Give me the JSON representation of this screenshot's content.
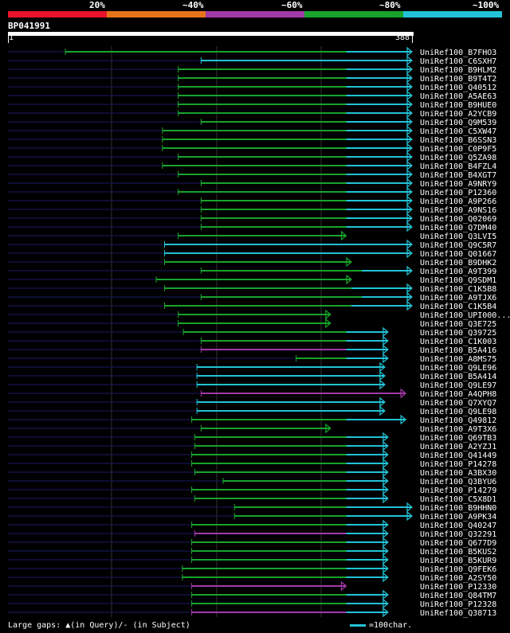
{
  "legend": {
    "labels": [
      "20%",
      "~40%",
      "~60%",
      "~80%",
      "~100%"
    ],
    "colors": [
      "#e8132a",
      "#e8741a",
      "#a23aa8",
      "#18a42c",
      "#22c3d6"
    ]
  },
  "query": {
    "id": "BP041991",
    "start": "1",
    "end": "388"
  },
  "footer": {
    "gaps": "Large gaps: ▲(in Query)/- (in Subject)",
    "scale": "=100char."
  },
  "hits": [
    {
      "name": "UniRef100_B7FHO3",
      "start": 56,
      "end": 388,
      "color": "#18a42c",
      "cyan_from": 325
    },
    {
      "name": "UniRef100_C6SXH7",
      "start": 186,
      "end": 388,
      "color": "#22c3d6",
      "cyan_from": 186
    },
    {
      "name": "UniRef100_B9HLM2",
      "start": 164,
      "end": 388,
      "color": "#18a42c",
      "cyan_from": 325
    },
    {
      "name": "UniRef100_B9T4T2",
      "start": 164,
      "end": 388,
      "color": "#18a42c",
      "cyan_from": 325
    },
    {
      "name": "UniRef100_Q40512",
      "start": 164,
      "end": 388,
      "color": "#18a42c",
      "cyan_from": 325
    },
    {
      "name": "UniRef100_A5AE63",
      "start": 164,
      "end": 388,
      "color": "#18a42c",
      "cyan_from": 325
    },
    {
      "name": "UniRef100_B9HUE0",
      "start": 164,
      "end": 388,
      "color": "#18a42c",
      "cyan_from": 325
    },
    {
      "name": "UniRef100_A2YCB9",
      "start": 164,
      "end": 388,
      "color": "#18a42c",
      "cyan_from": 325
    },
    {
      "name": "UniRef100_Q9M539",
      "start": 186,
      "end": 388,
      "color": "#18a42c",
      "cyan_from": 325
    },
    {
      "name": "UniRef100_C5XW47",
      "start": 149,
      "end": 388,
      "color": "#18a42c",
      "cyan_from": 325
    },
    {
      "name": "UniRef100_B6SSN3",
      "start": 149,
      "end": 388,
      "color": "#18a42c",
      "cyan_from": 325
    },
    {
      "name": "UniRef100_C0P9F5",
      "start": 149,
      "end": 388,
      "color": "#18a42c",
      "cyan_from": 325
    },
    {
      "name": "UniRef100_Q5ZA98",
      "start": 164,
      "end": 388,
      "color": "#18a42c",
      "cyan_from": 325
    },
    {
      "name": "UniRef100_B4FZL4",
      "start": 149,
      "end": 388,
      "color": "#18a42c",
      "cyan_from": 325
    },
    {
      "name": "UniRef100_B4XGT7",
      "start": 164,
      "end": 388,
      "color": "#18a42c",
      "cyan_from": 325
    },
    {
      "name": "UniRef100_A9NRY9",
      "start": 186,
      "end": 388,
      "color": "#18a42c",
      "cyan_from": 325
    },
    {
      "name": "UniRef100_P12360",
      "start": 164,
      "end": 388,
      "color": "#18a42c",
      "cyan_from": 325
    },
    {
      "name": "UniRef100_A9P266",
      "start": 186,
      "end": 388,
      "color": "#18a42c",
      "cyan_from": 325
    },
    {
      "name": "UniRef100_A9NS16",
      "start": 186,
      "end": 388,
      "color": "#18a42c",
      "cyan_from": 325
    },
    {
      "name": "UniRef100_Q02069",
      "start": 186,
      "end": 388,
      "color": "#18a42c",
      "cyan_from": 325
    },
    {
      "name": "UniRef100_Q7DM40",
      "start": 186,
      "end": 388,
      "color": "#18a42c",
      "cyan_from": 325
    },
    {
      "name": "UniRef100_Q3LVI5",
      "start": 164,
      "end": 325,
      "color": "#18a42c",
      "cyan_from": null
    },
    {
      "name": "UniRef100_Q9C5R7",
      "start": 151,
      "end": 388,
      "color": "#22c3d6",
      "cyan_from": 330
    },
    {
      "name": "UniRef100_Q01667",
      "start": 151,
      "end": 388,
      "color": "#22c3d6",
      "cyan_from": 330
    },
    {
      "name": "UniRef100_B9DHK2",
      "start": 151,
      "end": 330,
      "color": "#18a42c",
      "cyan_from": null
    },
    {
      "name": "UniRef100_A9T399",
      "start": 186,
      "end": 388,
      "color": "#18a42c",
      "cyan_from": 340
    },
    {
      "name": "UniRef100_Q9SDM1",
      "start": 143,
      "end": 330,
      "color": "#18a42c",
      "cyan_from": null
    },
    {
      "name": "UniRef100_C1K5B8",
      "start": 151,
      "end": 388,
      "color": "#18a42c",
      "cyan_from": 330
    },
    {
      "name": "UniRef100_A9TJX6",
      "start": 186,
      "end": 388,
      "color": "#18a42c",
      "cyan_from": 340
    },
    {
      "name": "UniRef100_C1K5B4",
      "start": 151,
      "end": 388,
      "color": "#18a42c",
      "cyan_from": 330
    },
    {
      "name": "UniRef100_UPI000...",
      "start": 164,
      "end": 310,
      "color": "#18a42c",
      "cyan_from": null
    },
    {
      "name": "UniRef100_Q3E725",
      "start": 164,
      "end": 310,
      "color": "#18a42c",
      "cyan_from": null
    },
    {
      "name": "UniRef100_Q39725",
      "start": 169,
      "end": 365,
      "color": "#18a42c",
      "cyan_from": 325
    },
    {
      "name": "UniRef100_C1K003",
      "start": 186,
      "end": 365,
      "color": "#18a42c",
      "cyan_from": 325
    },
    {
      "name": "UniRef100_B5A416",
      "start": 186,
      "end": 365,
      "color": "#a23aa8",
      "cyan_from": 325
    },
    {
      "name": "UniRef100_A8MS75",
      "start": 277,
      "end": 365,
      "color": "#18a42c",
      "cyan_from": 325
    },
    {
      "name": "UniRef100_Q9LE96",
      "start": 182,
      "end": 362,
      "color": "#22c3d6",
      "cyan_from": 325
    },
    {
      "name": "UniRef100_B5A414",
      "start": 182,
      "end": 362,
      "color": "#22c3d6",
      "cyan_from": 325
    },
    {
      "name": "UniRef100_Q9LE97",
      "start": 182,
      "end": 362,
      "color": "#22c3d6",
      "cyan_from": 325
    },
    {
      "name": "UniRef100_A4QPH8",
      "start": 186,
      "end": 382,
      "color": "#a23aa8",
      "cyan_from": null
    },
    {
      "name": "UniRef100_Q7XYQ7",
      "start": 182,
      "end": 362,
      "color": "#22c3d6",
      "cyan_from": 325
    },
    {
      "name": "UniRef100_Q9LE98",
      "start": 182,
      "end": 362,
      "color": "#22c3d6",
      "cyan_from": 325
    },
    {
      "name": "UniRef100_Q49812",
      "start": 177,
      "end": 382,
      "color": "#18a42c",
      "cyan_from": 325
    },
    {
      "name": "UniRef100_A9T3X6",
      "start": 186,
      "end": 310,
      "color": "#18a42c",
      "cyan_from": null
    },
    {
      "name": "UniRef100_Q69TB3",
      "start": 180,
      "end": 365,
      "color": "#18a42c",
      "cyan_from": 325
    },
    {
      "name": "UniRef100_A2YZJ1",
      "start": 180,
      "end": 365,
      "color": "#18a42c",
      "cyan_from": 325
    },
    {
      "name": "UniRef100_Q41449",
      "start": 177,
      "end": 365,
      "color": "#18a42c",
      "cyan_from": 325
    },
    {
      "name": "UniRef100_P14278",
      "start": 177,
      "end": 365,
      "color": "#18a42c",
      "cyan_from": 325
    },
    {
      "name": "UniRef100_A3BX30",
      "start": 180,
      "end": 365,
      "color": "#18a42c",
      "cyan_from": 325
    },
    {
      "name": "UniRef100_Q3BYU6",
      "start": 207,
      "end": 365,
      "color": "#18a42c",
      "cyan_from": 325
    },
    {
      "name": "UniRef100_P14279",
      "start": 177,
      "end": 365,
      "color": "#18a42c",
      "cyan_from": 325
    },
    {
      "name": "UniRef100_C5X8D1",
      "start": 180,
      "end": 365,
      "color": "#18a42c",
      "cyan_from": 325
    },
    {
      "name": "UniRef100_B9HHN0",
      "start": 218,
      "end": 388,
      "color": "#18a42c",
      "cyan_from": 325
    },
    {
      "name": "UniRef100_A9PK34",
      "start": 218,
      "end": 388,
      "color": "#18a42c",
      "cyan_from": 325
    },
    {
      "name": "UniRef100_Q40247",
      "start": 177,
      "end": 365,
      "color": "#18a42c",
      "cyan_from": 325
    },
    {
      "name": "UniRef100_Q32291",
      "start": 180,
      "end": 365,
      "color": "#a23aa8",
      "cyan_from": 325
    },
    {
      "name": "UniRef100_Q677D9",
      "start": 177,
      "end": 365,
      "color": "#18a42c",
      "cyan_from": 325
    },
    {
      "name": "UniRef100_B5KUS2",
      "start": 177,
      "end": 365,
      "color": "#18a42c",
      "cyan_from": 325
    },
    {
      "name": "UniRef100_B5KUR9",
      "start": 177,
      "end": 365,
      "color": "#18a42c",
      "cyan_from": 325
    },
    {
      "name": "UniRef100_Q9FEK6",
      "start": 168,
      "end": 365,
      "color": "#18a42c",
      "cyan_from": 325
    },
    {
      "name": "UniRef100_A2SY50",
      "start": 168,
      "end": 365,
      "color": "#18a42c",
      "cyan_from": 325
    },
    {
      "name": "UniRef100_P12330",
      "start": 177,
      "end": 325,
      "color": "#a23aa8",
      "cyan_from": null
    },
    {
      "name": "UniRef100_Q84TM7",
      "start": 177,
      "end": 365,
      "color": "#18a42c",
      "cyan_from": 325
    },
    {
      "name": "UniRef100_P12328",
      "start": 177,
      "end": 365,
      "color": "#18a42c",
      "cyan_from": 325
    },
    {
      "name": "UniRef100_Q38713",
      "start": 177,
      "end": 365,
      "color": "#a23aa8",
      "cyan_from": 325
    }
  ]
}
